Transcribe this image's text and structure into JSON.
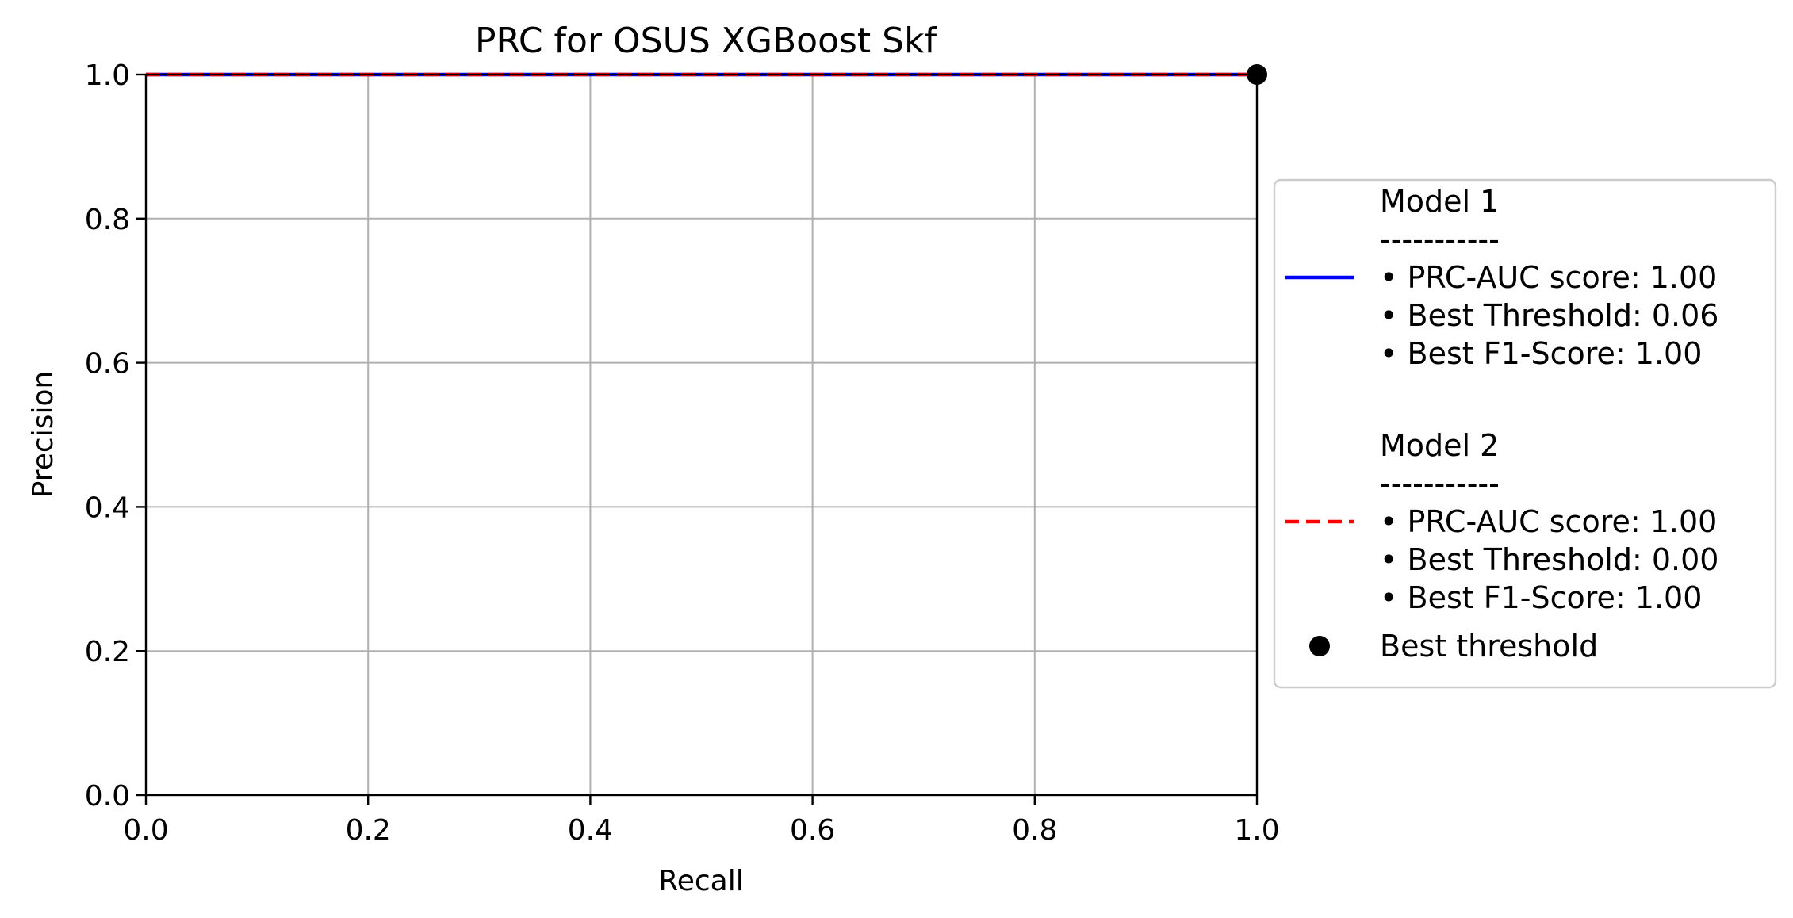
{
  "chart_data": {
    "type": "line",
    "title": "PRC for OSUS XGBoost Skf",
    "xlabel": "Recall",
    "ylabel": "Precision",
    "xlim": [
      0.0,
      1.0
    ],
    "ylim": [
      0.0,
      1.0
    ],
    "xticks": [
      "0.0",
      "0.2",
      "0.4",
      "0.6",
      "0.8",
      "1.0"
    ],
    "yticks": [
      "0.0",
      "0.2",
      "0.4",
      "0.6",
      "0.8",
      "1.0"
    ],
    "grid": true,
    "legend_position": "center-right outside",
    "series": [
      {
        "name": "Model 1",
        "color": "#0000ff",
        "line_style": "solid",
        "x": [
          0.0,
          1.0
        ],
        "y": [
          1.0,
          1.0
        ],
        "legend_lines": [
          "Model 1",
          "-----------",
          " • PRC-AUC score: 1.00",
          " • Best Threshold: 0.06",
          " • Best F1-Score: 1.00"
        ]
      },
      {
        "name": "Model 2",
        "color": "#ff0000",
        "line_style": "dashed",
        "x": [
          0.0,
          1.0
        ],
        "y": [
          1.0,
          1.0
        ],
        "legend_lines": [
          "Model 2",
          "-----------",
          " • PRC-AUC score: 1.00",
          " • Best Threshold: 0.00",
          " • Best F1-Score: 1.00"
        ]
      }
    ],
    "markers": [
      {
        "name": "Best threshold",
        "color": "#000000",
        "x": 1.0,
        "y": 1.0
      }
    ]
  }
}
